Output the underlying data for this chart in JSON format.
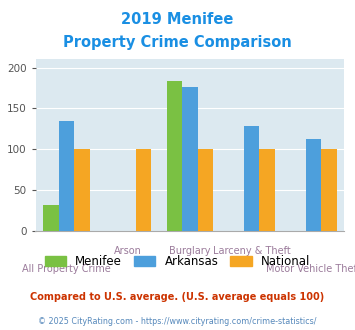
{
  "title_line1": "2019 Menifee",
  "title_line2": "Property Crime Comparison",
  "title_color": "#1a8fe3",
  "categories": [
    "All Property Crime",
    "Arson",
    "Burglary",
    "Larceny & Theft",
    "Motor Vehicle Theft"
  ],
  "menifee": [
    32,
    0,
    184,
    0,
    0
  ],
  "arkansas": [
    135,
    0,
    176,
    129,
    112
  ],
  "national": [
    100,
    100,
    100,
    100,
    100
  ],
  "menifee_color": "#7ac143",
  "arkansas_color": "#4d9fdc",
  "national_color": "#f5a623",
  "ylim": [
    0,
    210
  ],
  "yticks": [
    0,
    50,
    100,
    150,
    200
  ],
  "plot_bg": "#dce9f0",
  "legend_labels": [
    "Menifee",
    "Arkansas",
    "National"
  ],
  "footer1": "Compared to U.S. average. (U.S. average equals 100)",
  "footer2": "© 2025 CityRating.com - https://www.cityrating.com/crime-statistics/",
  "footer1_color": "#cc3300",
  "footer2_color": "#5588bb",
  "xlabel_color": "#9b7b9b",
  "bar_width": 0.25
}
